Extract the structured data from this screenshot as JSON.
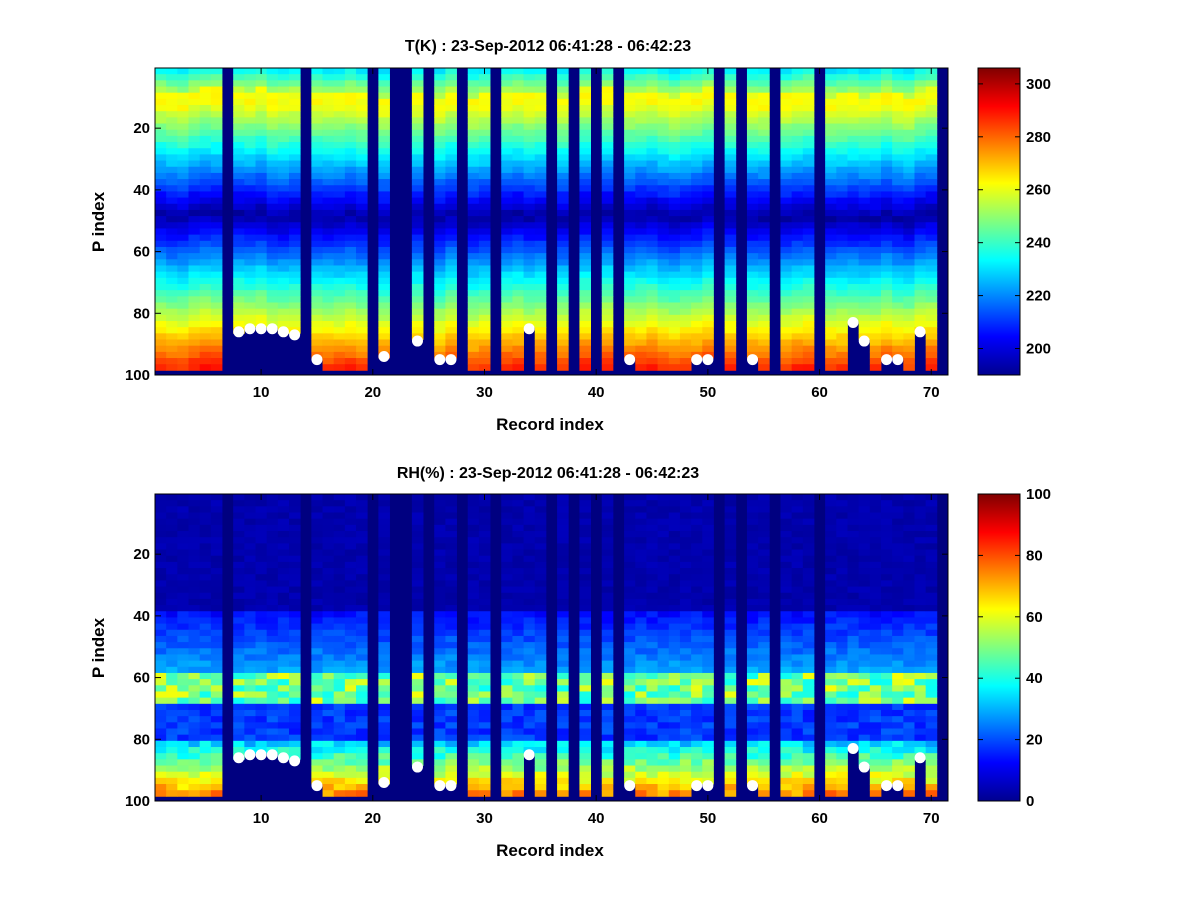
{
  "chart_data": [
    {
      "type": "heatmap",
      "title": "T(K) : 23-Sep-2012 06:41:28 - 06:42:23",
      "xlabel": "Record index",
      "ylabel": "P index",
      "xlim": [
        0.5,
        71.5
      ],
      "ylim": [
        100,
        0.5
      ],
      "xticks": [
        "10",
        "20",
        "30",
        "40",
        "50",
        "60",
        "70"
      ],
      "yticks": [
        "20",
        "40",
        "60",
        "80",
        "100"
      ],
      "colorbar": {
        "min": 190,
        "max": 306,
        "ticks": [
          "200",
          "220",
          "240",
          "260",
          "280",
          "300"
        ]
      },
      "colormap": "jet",
      "profile_rows": 97,
      "no_data_value": 190,
      "no_data_records": [
        7,
        14,
        20,
        22,
        23,
        25,
        28,
        31,
        36,
        38,
        40,
        42,
        51,
        53,
        56,
        60
      ],
      "surface_markers": [
        {
          "x": 8,
          "y": 86
        },
        {
          "x": 9,
          "y": 85
        },
        {
          "x": 10,
          "y": 85
        },
        {
          "x": 11,
          "y": 85
        },
        {
          "x": 12,
          "y": 86
        },
        {
          "x": 13,
          "y": 87
        },
        {
          "x": 15,
          "y": 95
        },
        {
          "x": 21,
          "y": 94
        },
        {
          "x": 24,
          "y": 89
        },
        {
          "x": 26,
          "y": 95
        },
        {
          "x": 27,
          "y": 95
        },
        {
          "x": 34,
          "y": 85
        },
        {
          "x": 43,
          "y": 95
        },
        {
          "x": 49,
          "y": 95
        },
        {
          "x": 50,
          "y": 95
        },
        {
          "x": 54,
          "y": 95
        },
        {
          "x": 63,
          "y": 83
        },
        {
          "x": 64,
          "y": 89
        },
        {
          "x": 66,
          "y": 95
        },
        {
          "x": 67,
          "y": 95
        },
        {
          "x": 69,
          "y": 86
        }
      ]
    },
    {
      "type": "heatmap",
      "title": "RH(%) : 23-Sep-2012 06:41:28 - 06:42:23",
      "xlabel": "Record index",
      "ylabel": "P index",
      "xlim": [
        0.5,
        71.5
      ],
      "ylim": [
        100,
        0.5
      ],
      "xticks": [
        "10",
        "20",
        "30",
        "40",
        "50",
        "60",
        "70"
      ],
      "yticks": [
        "20",
        "40",
        "60",
        "80",
        "100"
      ],
      "colorbar": {
        "min": 0,
        "max": 100,
        "ticks": [
          "0",
          "20",
          "40",
          "60",
          "80",
          "100"
        ]
      },
      "colormap": "jet",
      "profile_rows": 97,
      "no_data_value": 0,
      "no_data_records": [
        7,
        14,
        20,
        22,
        23,
        25,
        28,
        31,
        36,
        38,
        40,
        42,
        51,
        53,
        56,
        60
      ],
      "surface_markers": [
        {
          "x": 8,
          "y": 86
        },
        {
          "x": 9,
          "y": 85
        },
        {
          "x": 10,
          "y": 85
        },
        {
          "x": 11,
          "y": 85
        },
        {
          "x": 12,
          "y": 86
        },
        {
          "x": 13,
          "y": 87
        },
        {
          "x": 15,
          "y": 95
        },
        {
          "x": 21,
          "y": 94
        },
        {
          "x": 24,
          "y": 89
        },
        {
          "x": 26,
          "y": 95
        },
        {
          "x": 27,
          "y": 95
        },
        {
          "x": 34,
          "y": 85
        },
        {
          "x": 43,
          "y": 95
        },
        {
          "x": 49,
          "y": 95
        },
        {
          "x": 50,
          "y": 95
        },
        {
          "x": 54,
          "y": 95
        },
        {
          "x": 63,
          "y": 83
        },
        {
          "x": 64,
          "y": 89
        },
        {
          "x": 66,
          "y": 95
        },
        {
          "x": 67,
          "y": 95
        },
        {
          "x": 69,
          "y": 86
        }
      ]
    }
  ]
}
